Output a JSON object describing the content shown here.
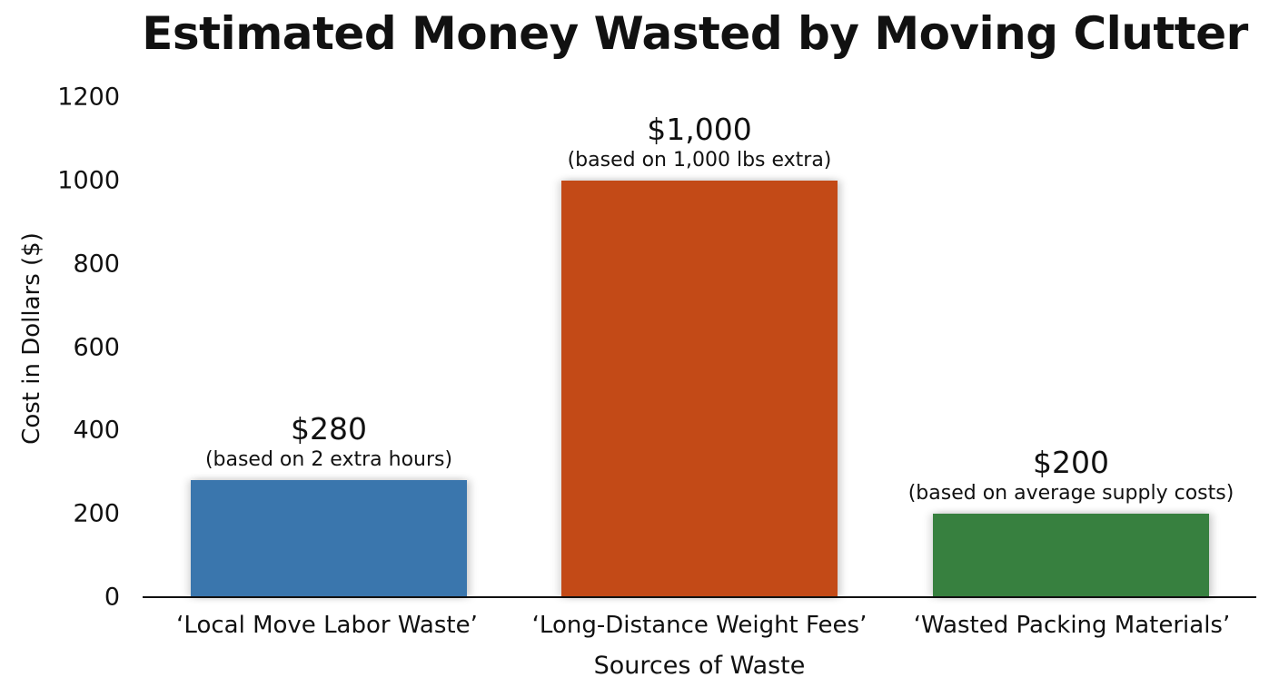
{
  "chart_data": {
    "type": "bar",
    "title": "Estimated Money Wasted by Moving Clutter",
    "xlabel": "Sources of Waste",
    "ylabel": "Cost in Dollars ($)",
    "ylim": [
      0,
      1200
    ],
    "yticks": [
      "0",
      "200",
      "400",
      "600",
      "800",
      "1000",
      "1200"
    ],
    "grid": false,
    "legend": null,
    "categories": [
      "‘Local Move Labor Waste’",
      "‘Long-Distance Weight Fees’",
      "‘Wasted Packing Materials’"
    ],
    "values": [
      280,
      1000,
      200
    ],
    "colors": [
      "#3a76ad",
      "#c34a17",
      "#37803f"
    ],
    "annotations": [
      {
        "value_label": "$280",
        "note": "(based on 2 extra hours)"
      },
      {
        "value_label": "$1,000",
        "note": "(based on 1,000 lbs extra)"
      },
      {
        "value_label": "$200",
        "note": "(based on average supply costs)"
      }
    ]
  }
}
